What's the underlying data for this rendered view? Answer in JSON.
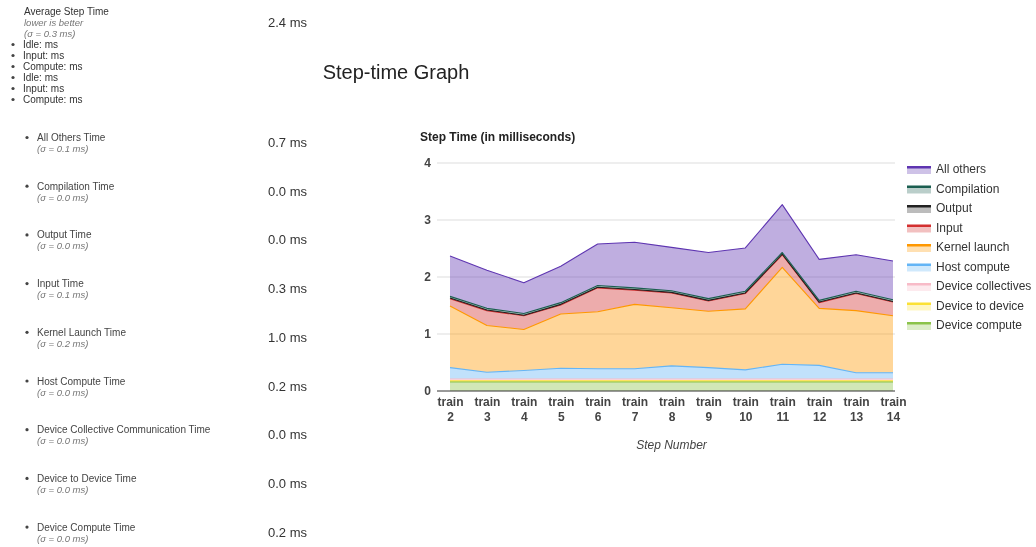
{
  "chart_data": [
    {
      "type": "other",
      "title": "Step-time Graph",
      "annotations": [
        "Average Step Time",
        "lower is better",
        "(σ = 0.3 ms)",
        "2.4 ms",
        "Idle: ms",
        "Input: ms",
        "Compute: ms",
        "Idle: ms",
        "Input: ms",
        "Compute: ms",
        "All Others Time",
        "(σ = 0.1 ms)",
        "0.7 ms",
        "Compilation Time",
        "(σ = 0.0 ms)",
        "0.0 ms",
        "Output Time",
        "(σ = 0.0 ms)",
        "0.0 ms",
        "Input Time",
        "(σ = 0.1 ms)",
        "0.3 ms",
        "Kernel Launch Time",
        "(σ = 0.2 ms)",
        "1.0 ms",
        "Host Compute Time",
        "(σ = 0.0 ms)",
        "0.2 ms",
        "Device Collective Communication Time",
        "(σ = 0.0 ms)",
        "0.0 ms",
        "Device to Device Time",
        "(σ = 0.0 ms)",
        "0.0 ms",
        "Device Compute Time",
        "(σ = 0.0 ms)",
        "0.2 ms"
      ]
    },
    {
      "type": "area",
      "stacked": true,
      "title": "Step Time (in milliseconds)",
      "xlabel": "Step Number",
      "categories": [
        "train 2",
        "train 3",
        "train 4",
        "train 5",
        "train 6",
        "train 7",
        "train 8",
        "train 9",
        "train 10",
        "train 11",
        "train 12",
        "train 13",
        "train 14"
      ],
      "ylim": [
        0,
        4
      ],
      "yticks": [
        0,
        1,
        2,
        3,
        4
      ],
      "grid": "y",
      "legend": "right",
      "series": [
        {
          "name": "Device compute",
          "color": "#8bc34a",
          "values": [
            0.16,
            0.16,
            0.16,
            0.16,
            0.16,
            0.16,
            0.16,
            0.16,
            0.16,
            0.16,
            0.16,
            0.16,
            0.16
          ]
        },
        {
          "name": "Device to device",
          "color": "#fbe135",
          "values": [
            0.02,
            0.02,
            0.02,
            0.02,
            0.02,
            0.02,
            0.02,
            0.02,
            0.02,
            0.02,
            0.02,
            0.02,
            0.02
          ]
        },
        {
          "name": "Device collectives",
          "color": "#f8bbc8",
          "values": [
            0.03,
            0.03,
            0.03,
            0.03,
            0.03,
            0.03,
            0.03,
            0.03,
            0.03,
            0.03,
            0.03,
            0.03,
            0.03
          ]
        },
        {
          "name": "Host compute",
          "color": "#64b5f6",
          "values": [
            0.2,
            0.12,
            0.15,
            0.19,
            0.18,
            0.18,
            0.23,
            0.2,
            0.16,
            0.26,
            0.24,
            0.11,
            0.11
          ]
        },
        {
          "name": "Kernel launch",
          "color": "#ff9800",
          "values": [
            1.08,
            0.82,
            0.72,
            0.95,
            1.0,
            1.13,
            1.02,
            0.99,
            1.07,
            1.7,
            1.0,
            1.09,
            1.0
          ]
        },
        {
          "name": "Input",
          "color": "#d32f2f",
          "values": [
            0.13,
            0.26,
            0.24,
            0.16,
            0.42,
            0.25,
            0.26,
            0.18,
            0.27,
            0.22,
            0.1,
            0.3,
            0.24
          ]
        },
        {
          "name": "Output",
          "color": "#212121",
          "values": [
            0.01,
            0.01,
            0.01,
            0.01,
            0.01,
            0.01,
            0.01,
            0.01,
            0.01,
            0.01,
            0.01,
            0.01,
            0.01
          ]
        },
        {
          "name": "Compilation",
          "color": "#1b5e50",
          "values": [
            0.03,
            0.03,
            0.03,
            0.03,
            0.03,
            0.03,
            0.03,
            0.03,
            0.03,
            0.03,
            0.03,
            0.03,
            0.03
          ]
        },
        {
          "name": "All others",
          "color": "#5e35b1",
          "values": [
            0.71,
            0.67,
            0.54,
            0.64,
            0.73,
            0.8,
            0.76,
            0.81,
            0.76,
            0.84,
            0.72,
            0.64,
            0.68
          ]
        }
      ]
    }
  ]
}
